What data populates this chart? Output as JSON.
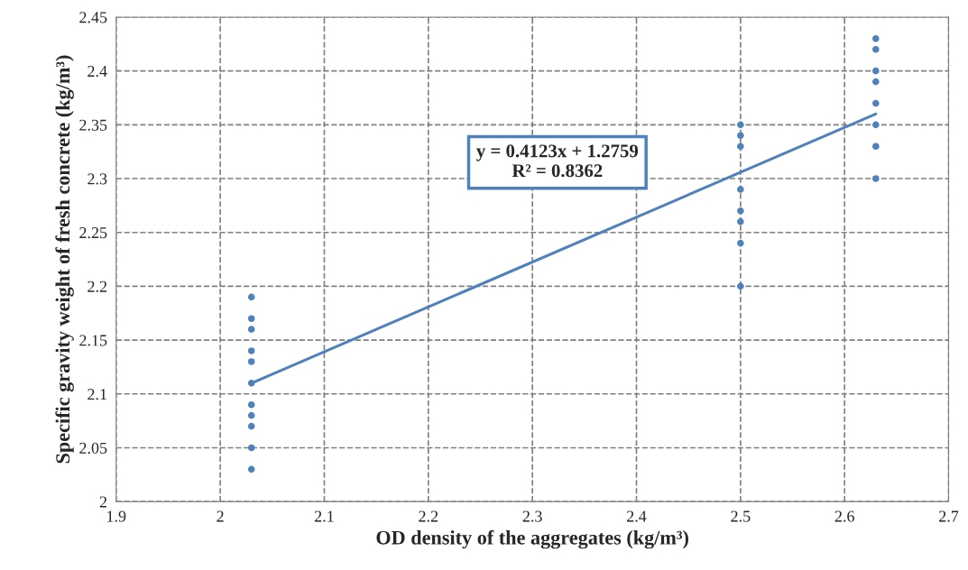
{
  "chart_data": {
    "type": "scatter",
    "xlabel": "OD density of the aggregates (kg/m³)",
    "ylabel": "Specific gravity weight of fresh concrete (kg/m³)",
    "xlim": [
      1.9,
      2.7
    ],
    "xticks": [
      1.9,
      2,
      2.1,
      2.2,
      2.3,
      2.4,
      2.5,
      2.6,
      2.7
    ],
    "ylim": [
      2,
      2.45
    ],
    "yticks": [
      2,
      2.05,
      2.1,
      2.15,
      2.2,
      2.25,
      2.3,
      2.35,
      2.4,
      2.45
    ],
    "grid": true,
    "annotations": [
      "y = 0.4123x + 1.2759\nR² = 0.8362"
    ],
    "series": [
      {
        "marker": "circle",
        "color": "#4f81bd",
        "x": [
          2.03,
          2.03,
          2.03,
          2.03,
          2.03,
          2.03,
          2.03,
          2.03,
          2.03,
          2.03,
          2.03,
          2.5,
          2.5,
          2.5,
          2.5,
          2.5,
          2.5,
          2.5,
          2.5,
          2.63,
          2.63,
          2.63,
          2.63,
          2.63,
          2.63,
          2.63,
          2.63
        ],
        "values": [
          2.19,
          2.17,
          2.16,
          2.14,
          2.13,
          2.11,
          2.09,
          2.08,
          2.07,
          2.05,
          2.03,
          2.35,
          2.34,
          2.33,
          2.29,
          2.27,
          2.26,
          2.24,
          2.2,
          2.43,
          2.42,
          2.4,
          2.39,
          2.37,
          2.35,
          2.33,
          2.3
        ]
      },
      {
        "type": "line",
        "color": "#4f81bd",
        "x": [
          2.03,
          2.63
        ],
        "values": [
          2.11,
          2.36
        ]
      }
    ]
  }
}
